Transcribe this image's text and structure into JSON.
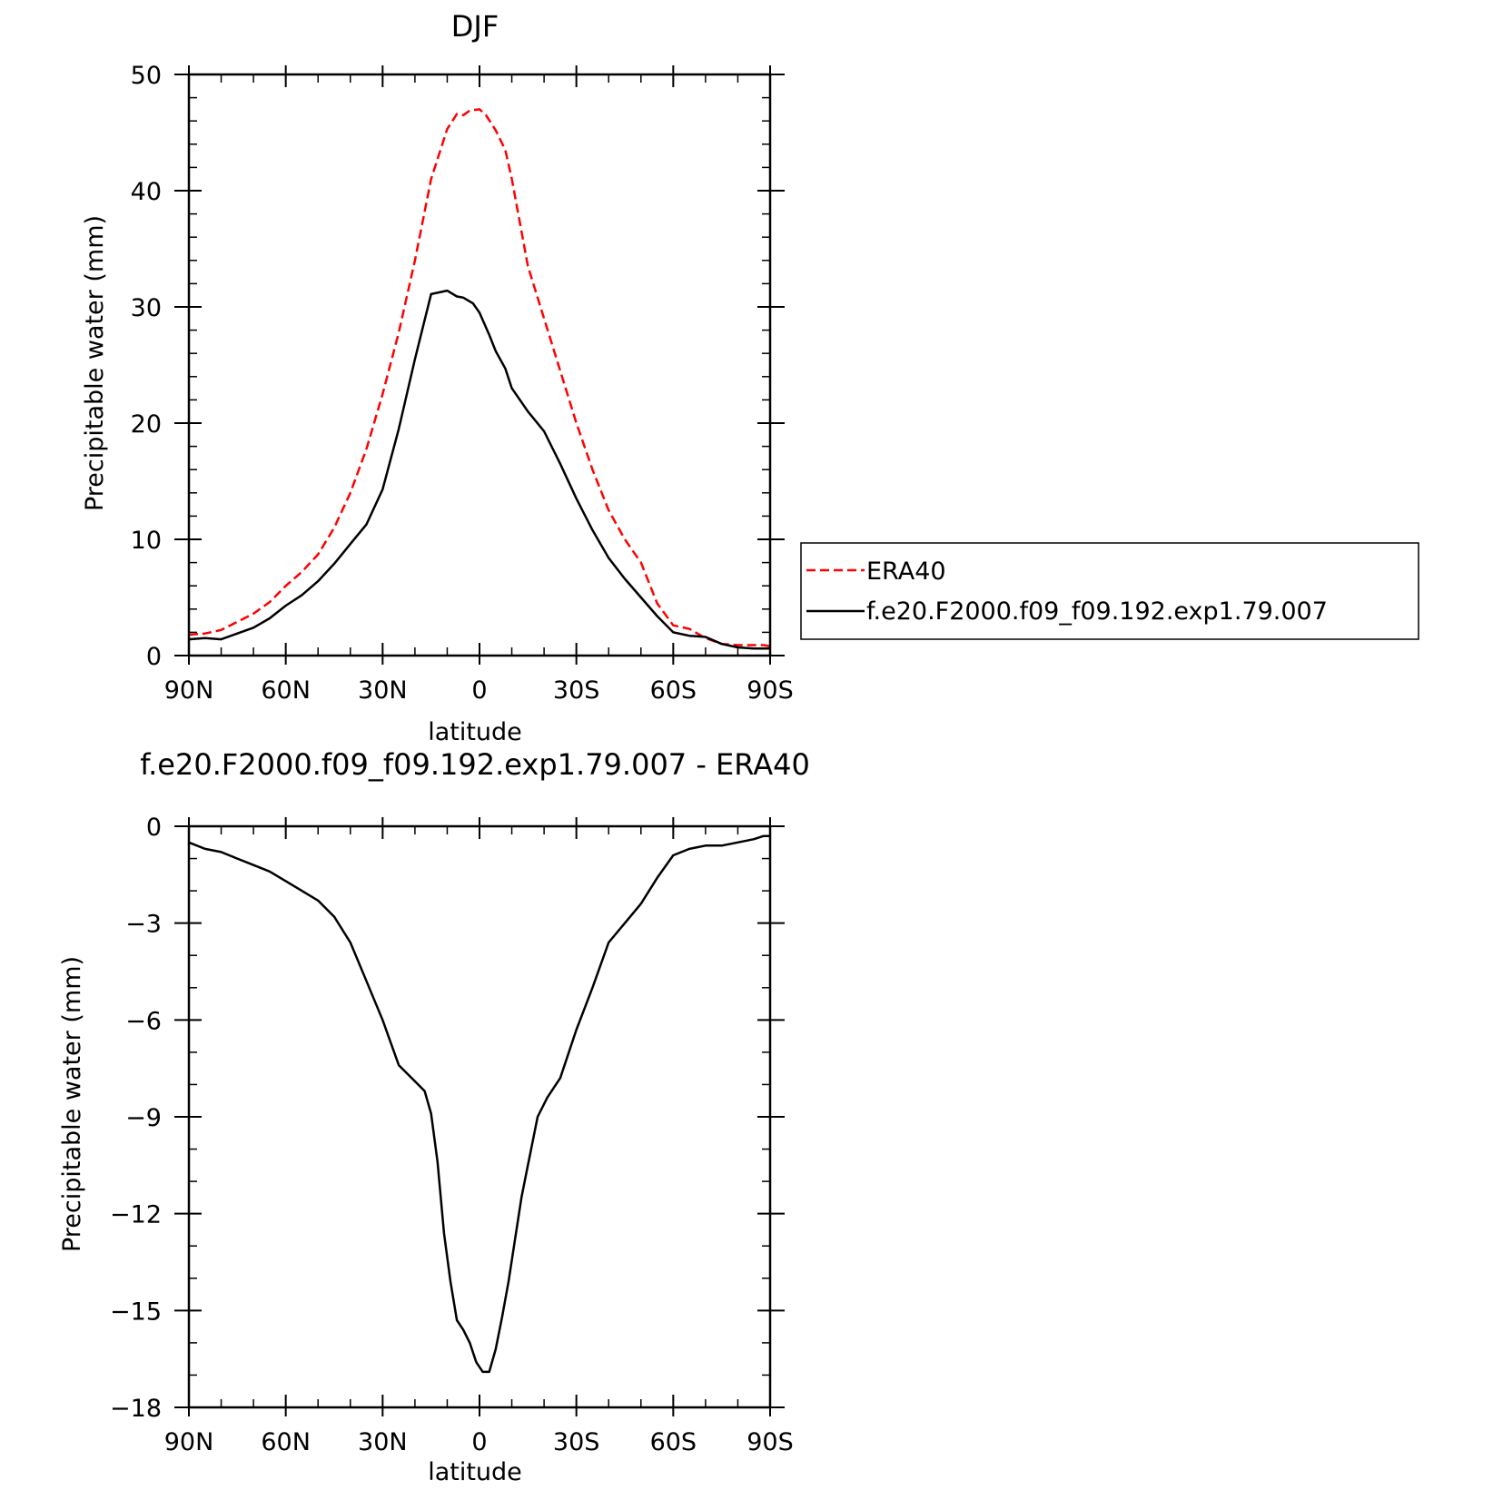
{
  "chart_data": [
    {
      "type": "line",
      "title": "DJF",
      "xlabel": "latitude",
      "ylabel": "Precipitable water (mm)",
      "xlim": [
        90,
        -90
      ],
      "ylim": [
        0,
        50
      ],
      "x_ticks": [
        90,
        60,
        30,
        0,
        -30,
        -60,
        -90
      ],
      "x_tick_labels": [
        "90N",
        "60N",
        "30N",
        "0",
        "30S",
        "60S",
        "90S"
      ],
      "y_ticks": [
        0,
        10,
        20,
        30,
        40,
        50
      ],
      "y_tick_labels": [
        "0",
        "10",
        "20",
        "30",
        "40",
        "50"
      ],
      "legend_position": "right",
      "series": [
        {
          "name": "ERA40",
          "color": "#ff0000",
          "dash": "dashed",
          "x": [
            90,
            85,
            80,
            75,
            70,
            65,
            60,
            55,
            50,
            45,
            40,
            35,
            30,
            25,
            20,
            15,
            10,
            7,
            5,
            3,
            0,
            -2,
            -5,
            -8,
            -10,
            -12,
            -15,
            -20,
            -25,
            -30,
            -35,
            -40,
            -45,
            -50,
            -55,
            -60,
            -65,
            -70,
            -75,
            -80,
            -85,
            -88,
            -90
          ],
          "y": [
            1.8,
            1.9,
            2.2,
            2.9,
            3.6,
            4.6,
            6.0,
            7.2,
            8.7,
            11.0,
            14.0,
            17.8,
            22.5,
            27.8,
            34.0,
            41.0,
            45.3,
            46.6,
            46.5,
            46.9,
            47.0,
            46.5,
            45.2,
            43.5,
            41.0,
            38.0,
            33.5,
            29.0,
            24.5,
            20.0,
            16.0,
            12.5,
            10.0,
            8.0,
            4.5,
            2.6,
            2.3,
            1.5,
            1.0,
            0.9,
            0.9,
            0.9,
            0.8
          ],
          "y_mode": "explicit"
        },
        {
          "name": "f.e20.F2000.f09_f09.192.exp1.79.007",
          "color": "#000000",
          "dash": "solid",
          "x": [
            90,
            85,
            80,
            75,
            70,
            65,
            60,
            55,
            50,
            45,
            40,
            35,
            30,
            25,
            20,
            15,
            10,
            7,
            5,
            2,
            0,
            -3,
            -5,
            -8,
            -10,
            -15,
            -20,
            -25,
            -30,
            -35,
            -40,
            -45,
            -50,
            -55,
            -60,
            -65,
            -70,
            -75,
            -80,
            -85,
            -88,
            -90
          ],
          "y": [
            1.4,
            1.5,
            1.4,
            1.9,
            2.4,
            3.2,
            4.3,
            5.2,
            6.4,
            7.9,
            9.6,
            11.3,
            14.3,
            19.5,
            25.5,
            31.1,
            31.4,
            30.9,
            30.8,
            30.3,
            29.5,
            27.6,
            26.2,
            24.7,
            23.0,
            21.0,
            19.3,
            16.5,
            13.5,
            10.8,
            8.4,
            6.6,
            5.0,
            3.4,
            2.0,
            1.7,
            1.6,
            1.0,
            0.7,
            0.6,
            0.6,
            0.6
          ]
        }
      ]
    },
    {
      "type": "line",
      "title": "f.e20.F2000.f09_f09.192.exp1.79.007 - ERA40",
      "xlabel": "latitude",
      "ylabel": "Precipitable water (mm)",
      "xlim": [
        90,
        -90
      ],
      "ylim": [
        -18,
        0
      ],
      "x_ticks": [
        90,
        60,
        30,
        0,
        -30,
        -60,
        -90
      ],
      "x_tick_labels": [
        "90N",
        "60N",
        "30N",
        "0",
        "30S",
        "60S",
        "90S"
      ],
      "y_ticks": [
        0,
        -3,
        -6,
        -9,
        -12,
        -15,
        -18
      ],
      "y_tick_labels": [
        "0",
        "−3",
        "−6",
        "−9",
        "−12",
        "−15",
        "−18"
      ],
      "series": [
        {
          "color": "#000000",
          "dash": "solid",
          "x": [
            90,
            85,
            80,
            75,
            70,
            65,
            60,
            55,
            50,
            45,
            40,
            35,
            30,
            25,
            20,
            17,
            15,
            13,
            11,
            9,
            7,
            5,
            3,
            1,
            -1,
            -3,
            -5,
            -7,
            -9,
            -11,
            -13,
            -15,
            -18,
            -21,
            -25,
            -30,
            -35,
            -40,
            -45,
            -50,
            -55,
            -60,
            -65,
            -70,
            -75,
            -80,
            -85,
            -88,
            -90
          ],
          "y": [
            -0.5,
            -0.7,
            -0.8,
            -1.0,
            -1.2,
            -1.4,
            -1.7,
            -2.0,
            -2.3,
            -2.8,
            -3.6,
            -4.8,
            -6.0,
            -7.4,
            -7.9,
            -8.2,
            -8.9,
            -10.4,
            -12.6,
            -14.1,
            -15.3,
            -15.6,
            -16.0,
            -16.6,
            -16.9,
            -16.9,
            -16.2,
            -15.2,
            -14.1,
            -12.8,
            -11.5,
            -10.5,
            -9.0,
            -8.4,
            -7.8,
            -6.3,
            -5.0,
            -3.6,
            -3.0,
            -2.4,
            -1.6,
            -0.9,
            -0.7,
            -0.6,
            -0.6,
            -0.5,
            -0.4,
            -0.3,
            -0.3
          ]
        }
      ]
    }
  ]
}
